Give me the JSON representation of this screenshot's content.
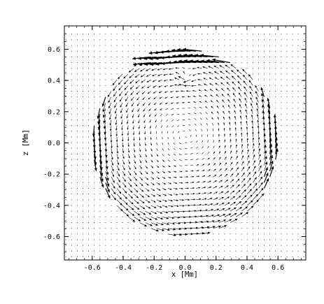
{
  "chart_data": {
    "type": "vector-field",
    "xlabel": "x [Mm]",
    "ylabel": "z [Mm]",
    "xlim": [
      -0.78,
      0.78
    ],
    "ylim": [
      -0.75,
      0.75
    ],
    "xticks": [
      -0.6,
      -0.4,
      -0.2,
      0.0,
      0.2,
      0.4,
      0.6
    ],
    "xtick_labels": [
      "-0.6",
      "-0.4",
      "-0.2",
      "0.0",
      "0.2",
      "0.4",
      "0.6"
    ],
    "yticks": [
      -0.6,
      -0.4,
      -0.2,
      0.0,
      0.2,
      0.4,
      0.6
    ],
    "ytick_labels": [
      "-0.6",
      "-0.4",
      "-0.2",
      "0.0",
      "0.2",
      "0.4",
      "0.6"
    ],
    "grid": false,
    "arrow_color": "#000000",
    "field": {
      "domain_radius": 0.6,
      "background_grid_spacing": 0.0366,
      "vortex_center": [
        0.0,
        0.0
      ],
      "strong_jet_region": {
        "x": [
          -0.25,
          0.3
        ],
        "z": [
          0.5,
          0.63
        ],
        "direction": "leftward"
      }
    }
  }
}
